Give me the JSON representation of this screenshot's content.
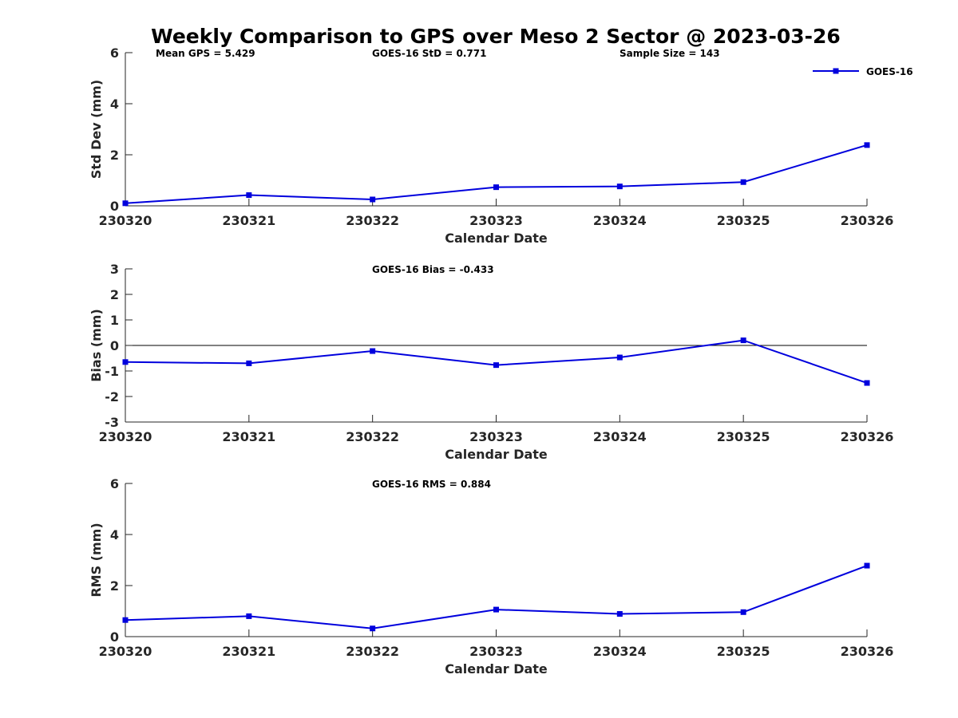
{
  "chart_data": {
    "type": "line",
    "title": "Weekly Comparison to GPS over Meso 2 Sector @ 2023-03-26",
    "series_color": "#0000dd",
    "categories": [
      "230320",
      "230321",
      "230322",
      "230323",
      "230324",
      "230325",
      "230326"
    ],
    "panels": [
      {
        "id": "std",
        "ylabel": "Std Dev (mm)",
        "xlabel": "Calendar Date",
        "ylim": [
          0,
          6
        ],
        "yticks": [
          0,
          2,
          4,
          6
        ],
        "zero_line": false,
        "annotations": [
          "Mean GPS = 5.429",
          "GOES-16 StD = 0.771",
          "Sample Size = 143"
        ],
        "legend": {
          "entries": [
            "GOES-16"
          ],
          "placement": "top-right"
        },
        "series": [
          {
            "name": "GOES-16",
            "values": [
              0.1,
              0.42,
              0.25,
              0.73,
              0.76,
              0.93,
              2.38
            ]
          }
        ]
      },
      {
        "id": "bias",
        "ylabel": "Bias (mm)",
        "xlabel": "Calendar Date",
        "ylim": [
          -3,
          3
        ],
        "yticks": [
          -3,
          -2,
          -1,
          0,
          1,
          2,
          3
        ],
        "zero_line": true,
        "annotations": [
          "GOES-16 Bias  = -0.433"
        ],
        "series": [
          {
            "name": "GOES-16",
            "values": [
              -0.65,
              -0.7,
              -0.22,
              -0.77,
              -0.47,
              0.2,
              -1.47
            ]
          }
        ]
      },
      {
        "id": "rms",
        "ylabel": "RMS (mm)",
        "xlabel": "Calendar Date",
        "ylim": [
          0,
          6
        ],
        "yticks": [
          0,
          2,
          4,
          6
        ],
        "zero_line": false,
        "annotations": [
          "GOES-16 RMS = 0.884"
        ],
        "series": [
          {
            "name": "GOES-16",
            "values": [
              0.65,
              0.8,
              0.32,
              1.06,
              0.89,
              0.96,
              2.78
            ]
          }
        ]
      }
    ]
  }
}
